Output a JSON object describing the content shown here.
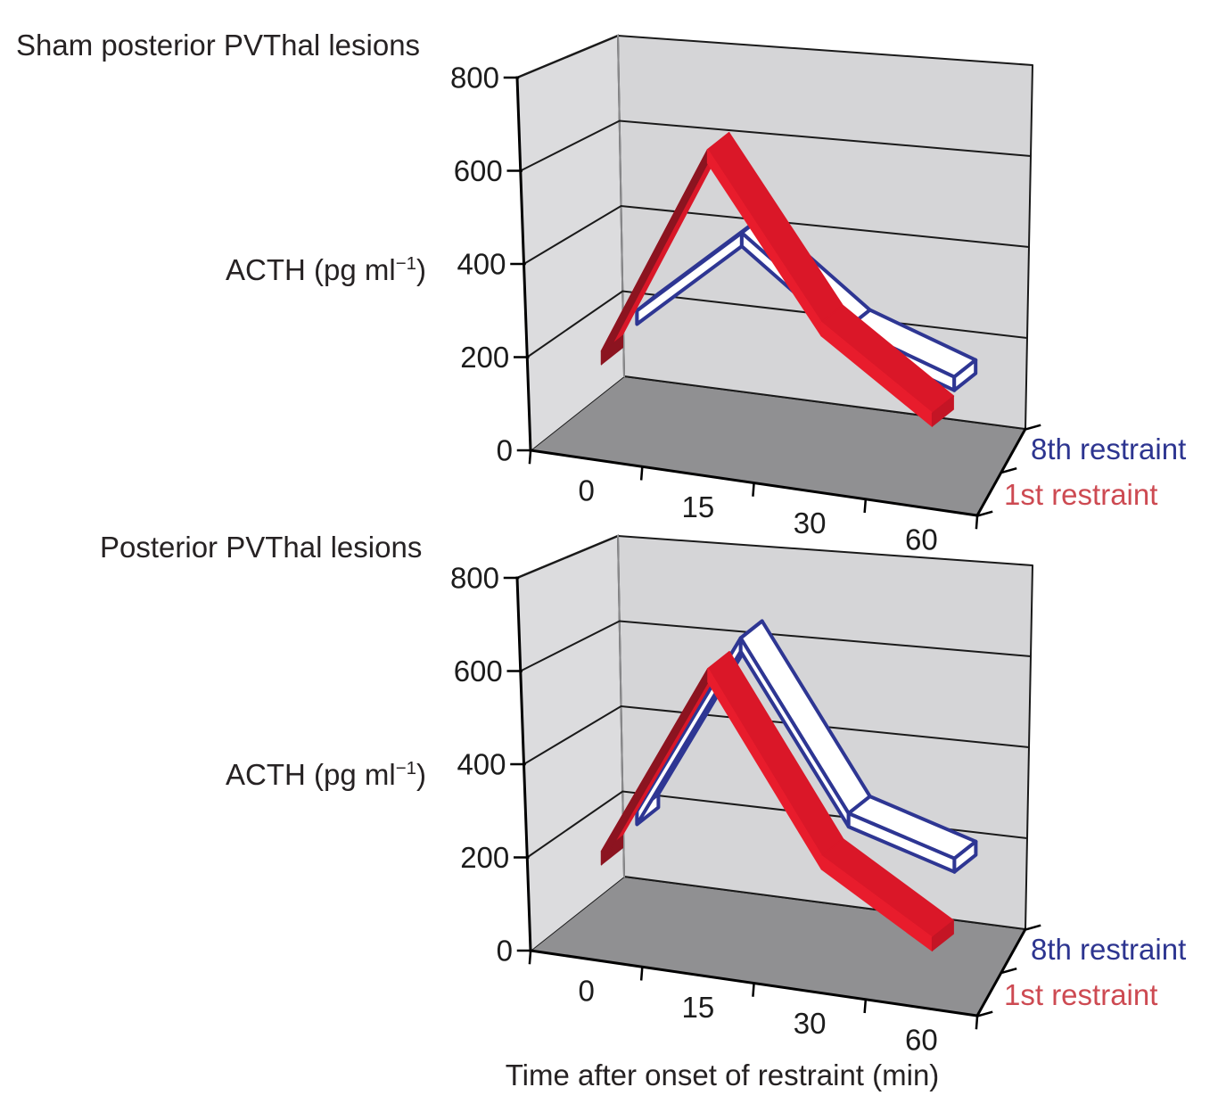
{
  "chart_data": [
    {
      "type": "line",
      "style_3d": "ribbon",
      "title": "Sham posterior PVThal lesions",
      "xlabel": "",
      "ylabel": "ACTH (pg ml−1)",
      "ylabel_parts": {
        "main": "ACTH (pg ml",
        "sup": "−1",
        "close": ")"
      },
      "x_categories": [
        "0",
        "15",
        "30",
        "60"
      ],
      "ylim": [
        0,
        800
      ],
      "yticks": [
        0,
        200,
        400,
        600,
        800
      ],
      "grid": true,
      "legend_position": "right",
      "series": [
        {
          "name": "8th restraint",
          "values": [
            230,
            430,
            250,
            170
          ]
        },
        {
          "name": "1st restraint",
          "values": [
            200,
            660,
            320,
            160
          ]
        }
      ]
    },
    {
      "type": "line",
      "style_3d": "ribbon",
      "title": "Posterior PVThal lesions",
      "xlabel": "Time after onset of restraint (min)",
      "ylabel": "ACTH (pg ml−1)",
      "ylabel_parts": {
        "main": "ACTH (pg ml",
        "sup": "−1",
        "close": ")"
      },
      "x_categories": [
        "0",
        "15",
        "30",
        "60"
      ],
      "ylim": [
        0,
        800
      ],
      "yticks": [
        0,
        200,
        400,
        600,
        800
      ],
      "grid": true,
      "legend_position": "right",
      "series": [
        {
          "name": "8th restraint",
          "values": [
            230,
            640,
            280,
            210
          ]
        },
        {
          "name": "1st restraint",
          "values": [
            200,
            620,
            250,
            110
          ]
        }
      ]
    }
  ],
  "colors": {
    "first_restraint_front": "#e81c2c",
    "first_restraint_top": "#da1728",
    "first_restraint_dark": "#8c1420",
    "first_restraint_end": "#c41525",
    "eighth_restraint_outline": "#2e3693",
    "eighth_restraint_fill": "#ffffff",
    "legend_8th_text": "#2d3590",
    "legend_1st_text": "#cd4a52",
    "back_wall": "#d5d5d7",
    "left_wall": "#dcdcde",
    "floor": "#909092",
    "gridline": "#1a1a1a",
    "left_wall_back_edge": "#8a8a8c",
    "axis": "#000000",
    "text": "#1c1c1c"
  }
}
